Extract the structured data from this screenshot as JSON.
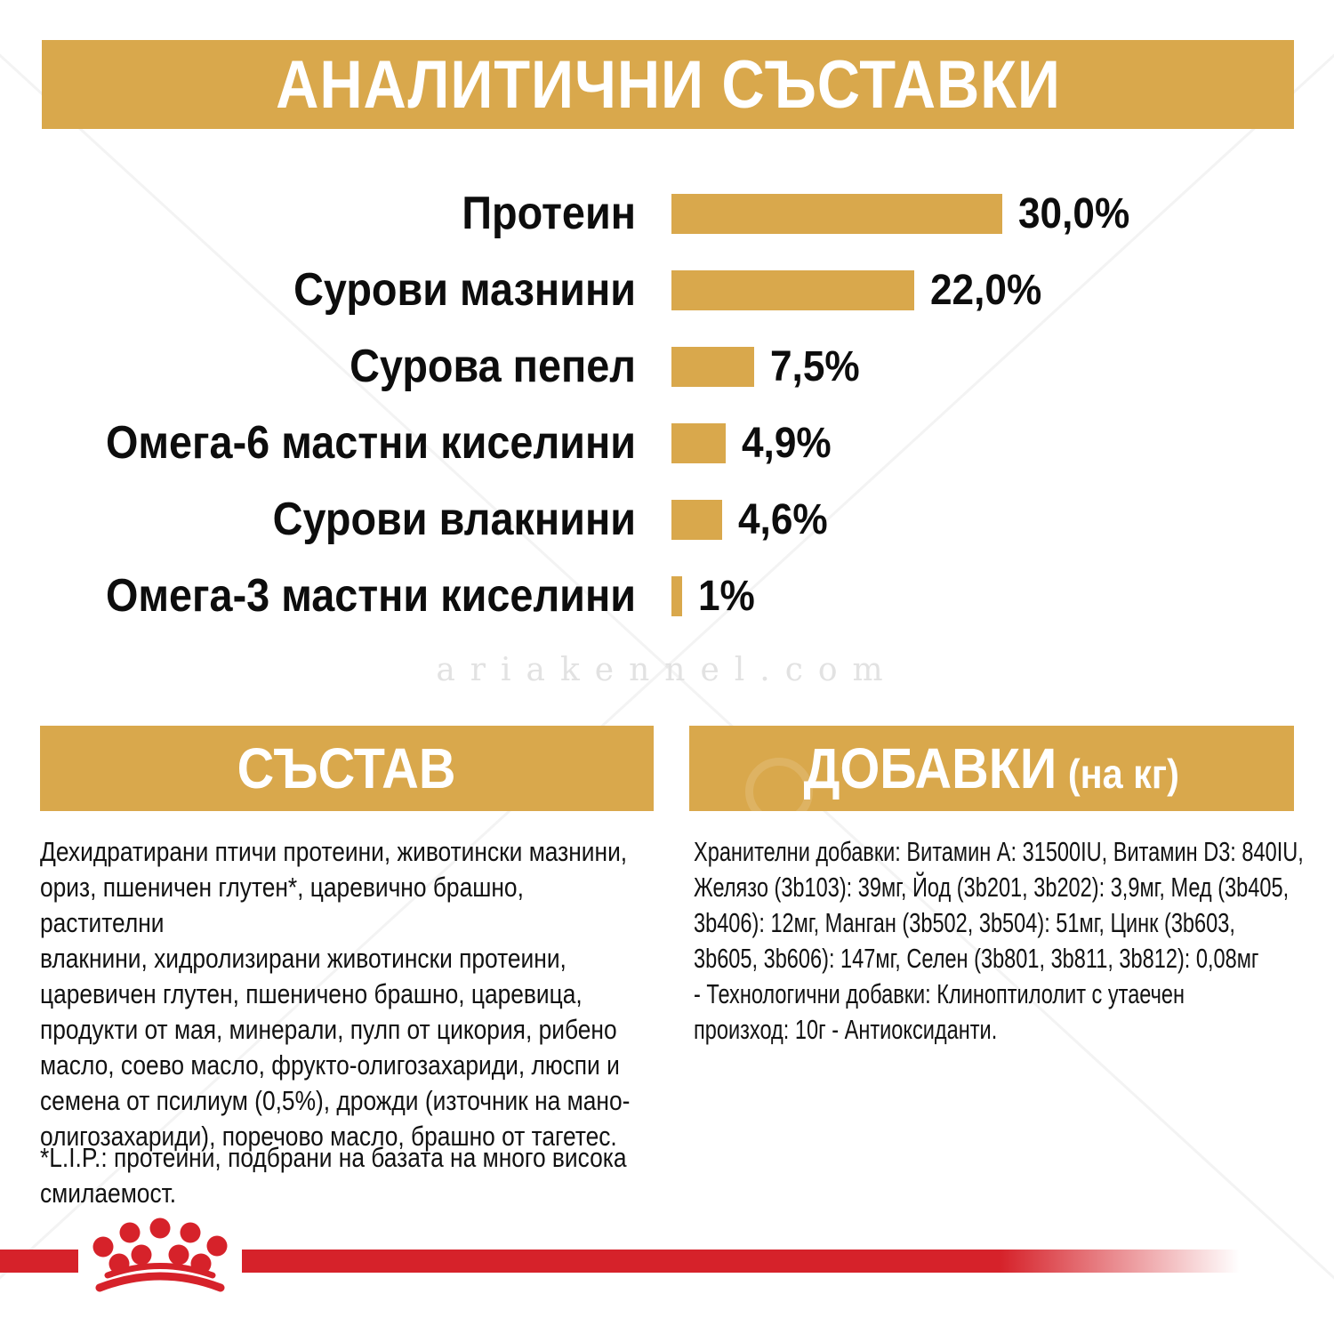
{
  "page": {
    "header": {
      "title": "АНАЛИТИЧНИ СЪСТАВКИ"
    },
    "watermark": "ariakennel.com",
    "sections": {
      "composition": {
        "title": "СЪСТАВ",
        "body": "Дехидратирани птичи протеини, животински мазнини,\nориз, пшеничен глутен*, царевично брашно, растителни\nвлакнини, хидролизирани животински протеини,\nцаревичен глутен, пшеничено брашно, царевица,\nпродукти от мая, минерали, пулп от цикория, рибено\nмасло, соево масло, фрукто-олигозахариди, люспи и\nсемена от псилиум (0,5%), дрожди (източник на мано-\nолигозахариди), поречово масло, брашно от тагетес.",
        "footnote": "*L.I.P.: протеини, подбрани на базата на много висока\nсмилаемост."
      },
      "additives": {
        "title": "ДОБАВКИ",
        "title_suffix": "(на кг)",
        "body": "Хранителни добавки: Витамин A: 31500IU, Витамин D3: 840IU,\nЖелязо (3b103): 39мг, Йод (3b201, 3b202): 3,9мг, Мед (3b405,\n3b406): 12мг, Манган (3b502, 3b504): 51мг, Цинк (3b603,\n3b605, 3b606): 147мг, Селен (3b801, 3b811, 3b812): 0,08мг\n- Технологични добавки: Клиноптилолит с утаечен\nпроизход: 10г - Антиоксиданти."
      }
    },
    "logo": "royal-canin-crown",
    "colors": {
      "gold": "#D9A84C",
      "red": "#D6222A",
      "text": "#141414",
      "watermark_gray": "#E2E2E2"
    }
  },
  "chart_data": {
    "type": "bar",
    "orientation": "horizontal",
    "title": "АНАЛИТИЧНИ СЪСТАВКИ",
    "categories": [
      "Протеин",
      "Сурови мазнини",
      "Сурова пепел",
      "Омега-6 мастни киселини",
      "Сурови влакнини",
      "Омега-3 мастни киселини"
    ],
    "values": [
      30.0,
      22.0,
      7.5,
      4.9,
      4.6,
      1.0
    ],
    "value_labels": [
      "30,0%",
      "22,0%",
      "7,5%",
      "4,9%",
      "4,6%",
      "1%"
    ],
    "unit": "%",
    "xlabel": "",
    "ylabel": "",
    "xlim": [
      0,
      33
    ],
    "grid": false,
    "legend": false,
    "bar_color": "#D9A84C"
  }
}
